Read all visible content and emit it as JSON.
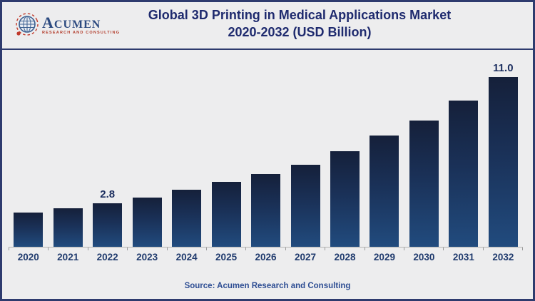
{
  "header": {
    "logo": {
      "brand_first_letter": "A",
      "brand_rest": "CUMEN",
      "tagline": "RESEARCH AND CONSULTING"
    },
    "title_line1": "Global 3D Printing in Medical Applications Market",
    "title_line2": "2020-2032 (USD Billion)"
  },
  "chart_data": {
    "type": "bar",
    "title": "Global 3D Printing in Medical Applications Market 2020-2032 (USD Billion)",
    "categories": [
      "2020",
      "2021",
      "2022",
      "2023",
      "2024",
      "2025",
      "2026",
      "2027",
      "2028",
      "2029",
      "2030",
      "2031",
      "2032"
    ],
    "values": [
      2.2,
      2.5,
      2.8,
      3.2,
      3.7,
      4.2,
      4.7,
      5.3,
      6.2,
      7.2,
      8.2,
      9.5,
      11.0
    ],
    "value_labels": [
      "",
      "",
      "2.8",
      "",
      "",
      "",
      "",
      "",
      "",
      "",
      "",
      "",
      "11.0"
    ],
    "xlabel": "",
    "ylabel": "",
    "ylim": [
      0,
      11
    ],
    "grid": false,
    "legend": false,
    "bar_gradient_top": "#15203a",
    "bar_gradient_bottom": "#214b7e",
    "axis_color": "#b3b3b3"
  },
  "footer": {
    "source": "Source: Acumen Research and Consulting"
  },
  "colors": {
    "background": "#ededee",
    "frame_border": "#2e3b6e",
    "title_text": "#1e2a6e",
    "value_label": "#1c2e5f",
    "year_label": "#1f3a6d",
    "source_text": "#2d4d93",
    "logo_navy": "#2c4a80",
    "logo_red": "#b23b2a"
  }
}
